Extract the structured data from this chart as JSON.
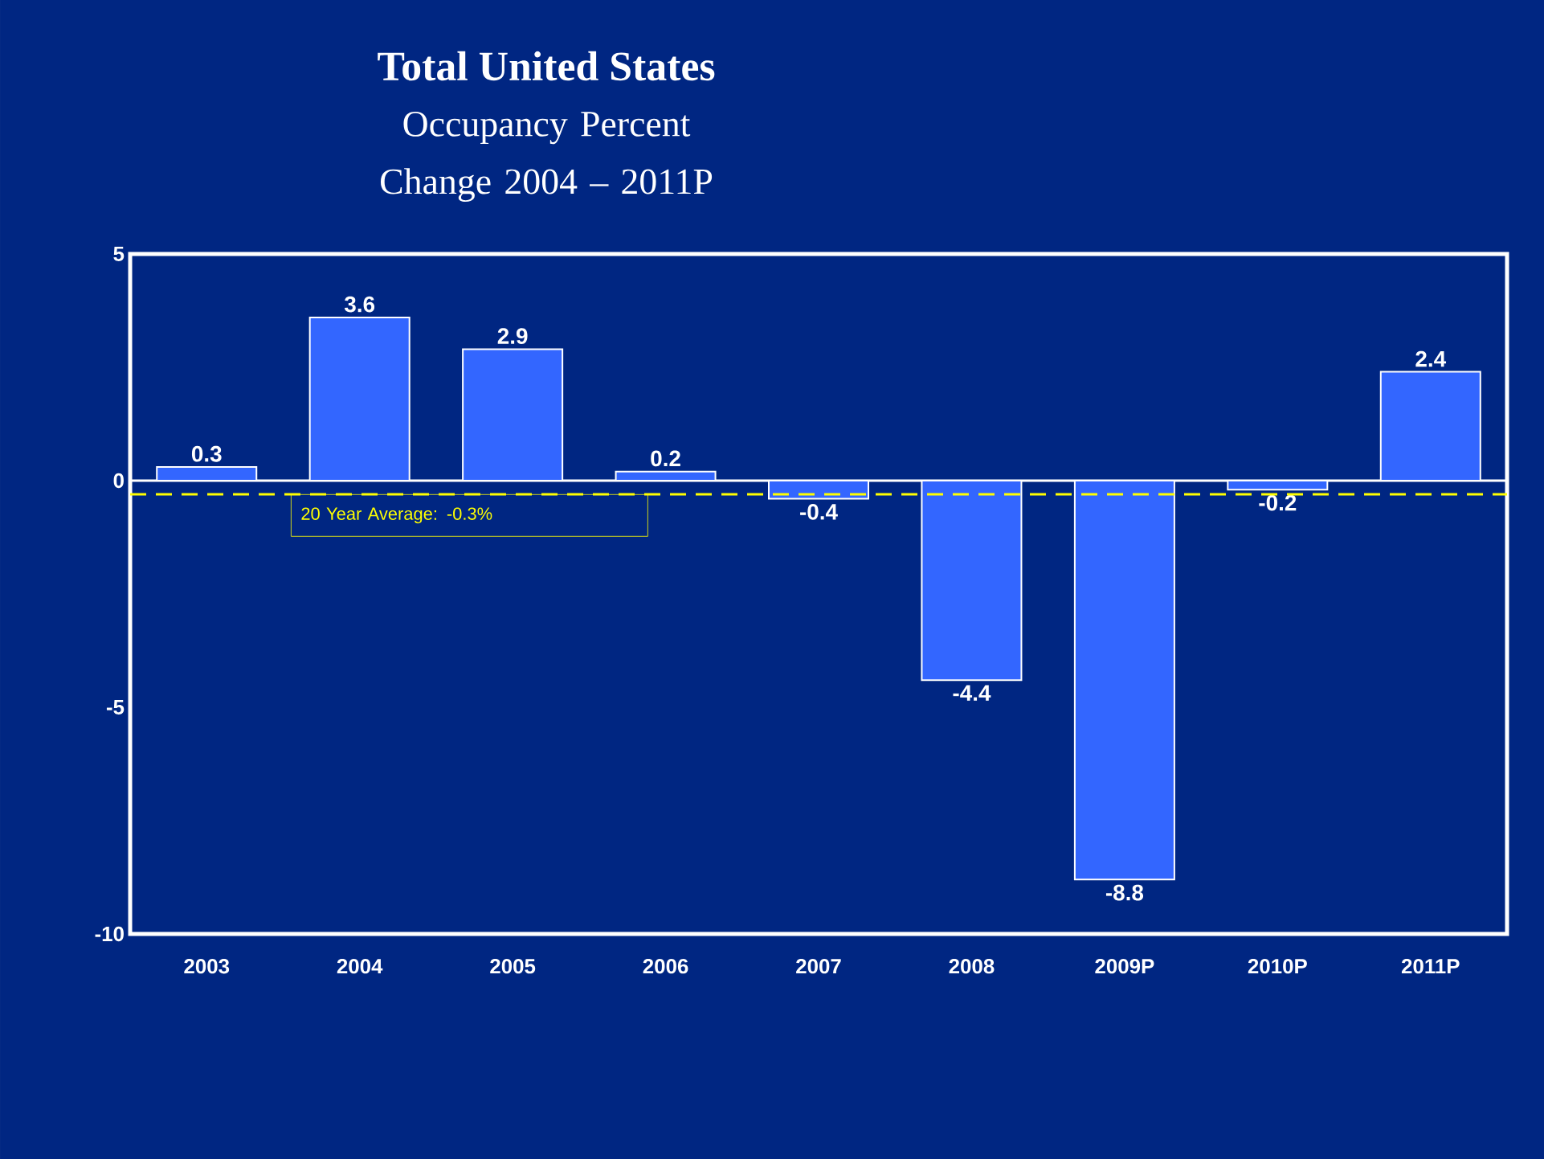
{
  "chart_data": {
    "type": "bar",
    "title": "Total United States",
    "subtitle": "Occupancy Percent Change 2004 – 2011P",
    "categories": [
      "2003",
      "2004",
      "2005",
      "2006",
      "2007",
      "2008",
      "2009P",
      "2010P",
      "2011P"
    ],
    "values": [
      0.3,
      3.6,
      2.9,
      0.2,
      -0.4,
      -4.4,
      -8.8,
      -0.2,
      2.4
    ],
    "color": "#3366ff",
    "ylim": [
      -10,
      5
    ],
    "yticks": [
      -10,
      -5,
      0,
      5
    ],
    "data_labels": true,
    "ref_lines": [
      {
        "axis": "y",
        "value": -0.3,
        "label": "20 Year Average: -0.3%",
        "color": "#ffff00",
        "line_style": "dashed"
      }
    ]
  }
}
